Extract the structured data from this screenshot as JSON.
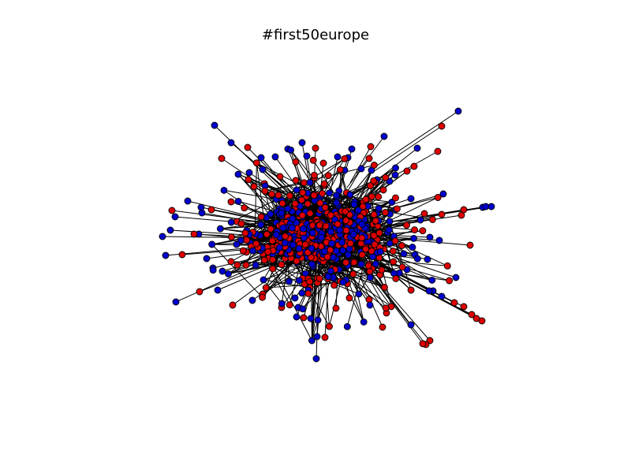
{
  "title": "#first50europe",
  "colors": {
    "background": "#ffffff",
    "edge": "#000000",
    "node_outline": "#000000",
    "group_a": "#0000cc",
    "group_b": "#dd0000"
  },
  "network": {
    "layout": "force-directed",
    "center_node_count": 620,
    "groups": [
      "group_a",
      "group_b"
    ]
  }
}
